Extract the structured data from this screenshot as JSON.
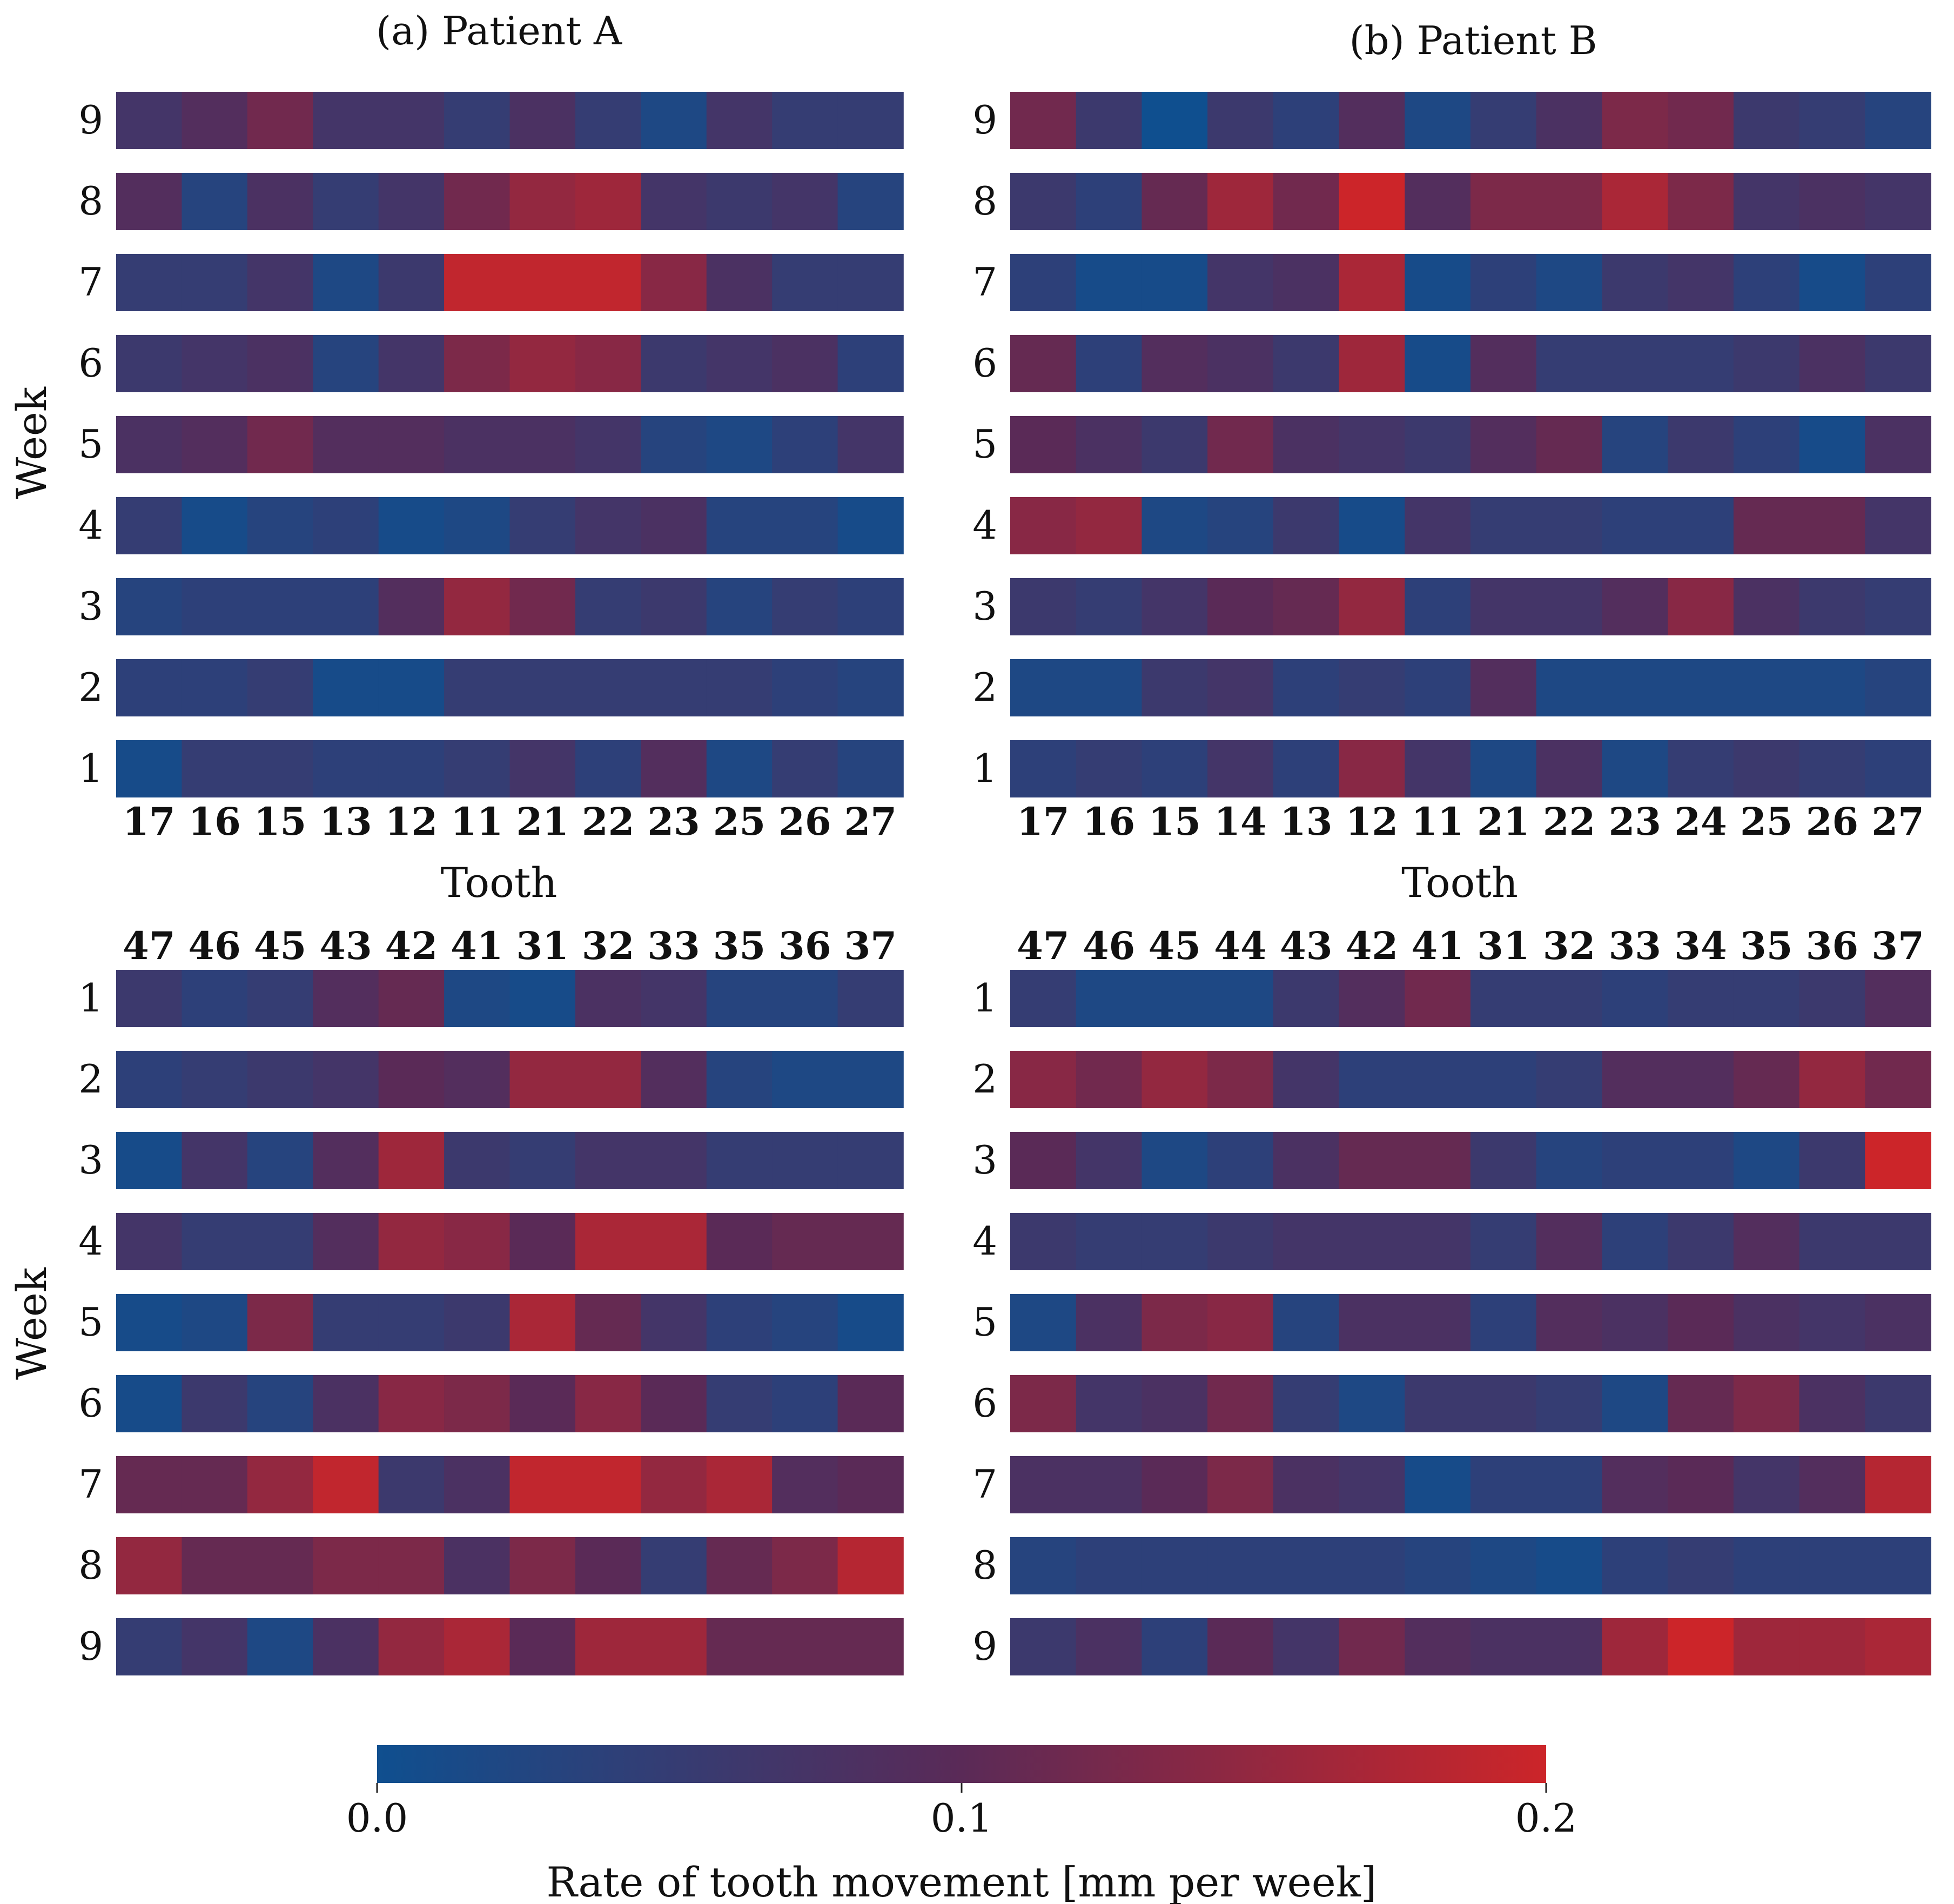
{
  "colorbar": {
    "label": "Rate of tooth movement [mm per week]",
    "min": 0.0,
    "max": 0.2,
    "ticks": [
      "0.0",
      "0.1",
      "0.2"
    ],
    "colors": [
      "#0f4f8f",
      "#5a2a57",
      "#cc2529"
    ]
  },
  "chart_data": [
    {
      "type": "heatmap",
      "title": "(a) Patient A",
      "xlabel": "Tooth",
      "ylabel": "Week",
      "x": [
        "17",
        "16",
        "15",
        "13",
        "12",
        "11",
        "21",
        "22",
        "23",
        "25",
        "26",
        "27"
      ],
      "y": [
        "9",
        "8",
        "7",
        "6",
        "5",
        "4",
        "3",
        "2",
        "1"
      ],
      "values": [
        [
          0.07,
          0.09,
          0.12,
          0.07,
          0.07,
          0.05,
          0.08,
          0.05,
          0.02,
          0.07,
          0.05,
          0.05
        ],
        [
          0.09,
          0.03,
          0.08,
          0.05,
          0.07,
          0.12,
          0.15,
          0.16,
          0.07,
          0.06,
          0.07,
          0.03
        ],
        [
          0.05,
          0.05,
          0.07,
          0.02,
          0.06,
          0.19,
          0.19,
          0.19,
          0.14,
          0.08,
          0.05,
          0.05
        ],
        [
          0.06,
          0.07,
          0.08,
          0.03,
          0.07,
          0.13,
          0.15,
          0.14,
          0.06,
          0.07,
          0.08,
          0.04
        ],
        [
          0.08,
          0.09,
          0.12,
          0.09,
          0.09,
          0.08,
          0.08,
          0.07,
          0.03,
          0.02,
          0.04,
          0.07
        ],
        [
          0.05,
          0.01,
          0.03,
          0.04,
          0.01,
          0.02,
          0.05,
          0.07,
          0.08,
          0.03,
          0.03,
          0.01
        ],
        [
          0.03,
          0.04,
          0.04,
          0.04,
          0.09,
          0.15,
          0.12,
          0.05,
          0.06,
          0.03,
          0.05,
          0.04
        ],
        [
          0.04,
          0.04,
          0.05,
          0.01,
          0.01,
          0.05,
          0.05,
          0.05,
          0.05,
          0.05,
          0.04,
          0.03
        ],
        [
          0.01,
          0.05,
          0.05,
          0.04,
          0.04,
          0.05,
          0.07,
          0.04,
          0.09,
          0.02,
          0.05,
          0.03
        ]
      ]
    },
    {
      "type": "heatmap",
      "title": "(b) Patient B",
      "xlabel": "Tooth",
      "ylabel": "",
      "x": [
        "17",
        "16",
        "15",
        "14",
        "13",
        "12",
        "11",
        "21",
        "22",
        "23",
        "24",
        "25",
        "26",
        "27"
      ],
      "y": [
        "9",
        "8",
        "7",
        "6",
        "5",
        "4",
        "3",
        "2",
        "1"
      ],
      "values": [
        [
          0.12,
          0.06,
          0.0,
          0.06,
          0.04,
          0.09,
          0.02,
          0.05,
          0.08,
          0.13,
          0.12,
          0.06,
          0.05,
          0.03
        ],
        [
          0.06,
          0.04,
          0.11,
          0.16,
          0.12,
          0.2,
          0.09,
          0.13,
          0.13,
          0.17,
          0.13,
          0.07,
          0.08,
          0.07
        ],
        [
          0.04,
          0.01,
          0.01,
          0.07,
          0.08,
          0.17,
          0.01,
          0.04,
          0.02,
          0.06,
          0.07,
          0.04,
          0.01,
          0.04
        ],
        [
          0.11,
          0.04,
          0.09,
          0.08,
          0.06,
          0.16,
          0.01,
          0.09,
          0.05,
          0.05,
          0.05,
          0.06,
          0.08,
          0.06
        ],
        [
          0.1,
          0.08,
          0.06,
          0.12,
          0.08,
          0.07,
          0.06,
          0.09,
          0.11,
          0.03,
          0.06,
          0.04,
          0.01,
          0.08
        ],
        [
          0.14,
          0.15,
          0.02,
          0.03,
          0.06,
          0.01,
          0.07,
          0.05,
          0.05,
          0.04,
          0.04,
          0.11,
          0.11,
          0.07
        ],
        [
          0.06,
          0.05,
          0.07,
          0.1,
          0.11,
          0.15,
          0.04,
          0.07,
          0.07,
          0.09,
          0.14,
          0.08,
          0.06,
          0.05
        ],
        [
          0.02,
          0.02,
          0.06,
          0.07,
          0.04,
          0.05,
          0.04,
          0.09,
          0.02,
          0.02,
          0.02,
          0.02,
          0.02,
          0.03
        ],
        [
          0.04,
          0.05,
          0.04,
          0.07,
          0.04,
          0.14,
          0.07,
          0.02,
          0.08,
          0.02,
          0.05,
          0.06,
          0.05,
          0.04
        ]
      ]
    },
    {
      "type": "heatmap",
      "title": "",
      "xlabel": "",
      "ylabel": "Week",
      "x": [
        "47",
        "46",
        "45",
        "43",
        "42",
        "41",
        "31",
        "32",
        "33",
        "35",
        "36",
        "37"
      ],
      "y": [
        "1",
        "2",
        "3",
        "4",
        "5",
        "6",
        "7",
        "8",
        "9"
      ],
      "values": [
        [
          0.06,
          0.04,
          0.05,
          0.09,
          0.11,
          0.02,
          0.01,
          0.08,
          0.07,
          0.03,
          0.03,
          0.05
        ],
        [
          0.04,
          0.05,
          0.06,
          0.07,
          0.1,
          0.09,
          0.15,
          0.15,
          0.09,
          0.03,
          0.02,
          0.02
        ],
        [
          0.01,
          0.07,
          0.03,
          0.09,
          0.16,
          0.06,
          0.05,
          0.07,
          0.07,
          0.05,
          0.05,
          0.05
        ],
        [
          0.07,
          0.05,
          0.05,
          0.09,
          0.15,
          0.14,
          0.1,
          0.17,
          0.17,
          0.1,
          0.11,
          0.11
        ],
        [
          0.01,
          0.02,
          0.13,
          0.05,
          0.05,
          0.06,
          0.17,
          0.11,
          0.07,
          0.04,
          0.03,
          0.01
        ],
        [
          0.01,
          0.06,
          0.03,
          0.08,
          0.14,
          0.13,
          0.1,
          0.14,
          0.1,
          0.05,
          0.04,
          0.1
        ],
        [
          0.11,
          0.11,
          0.15,
          0.19,
          0.06,
          0.08,
          0.19,
          0.19,
          0.15,
          0.17,
          0.09,
          0.1
        ],
        [
          0.15,
          0.11,
          0.11,
          0.13,
          0.13,
          0.08,
          0.13,
          0.1,
          0.05,
          0.11,
          0.13,
          0.18
        ],
        [
          0.05,
          0.07,
          0.02,
          0.08,
          0.15,
          0.17,
          0.1,
          0.16,
          0.16,
          0.11,
          0.11,
          0.11
        ]
      ]
    },
    {
      "type": "heatmap",
      "title": "",
      "xlabel": "",
      "ylabel": "",
      "x": [
        "47",
        "46",
        "45",
        "44",
        "43",
        "42",
        "41",
        "31",
        "32",
        "33",
        "34",
        "35",
        "36",
        "37"
      ],
      "y": [
        "1",
        "2",
        "3",
        "4",
        "5",
        "6",
        "7",
        "8",
        "9"
      ],
      "values": [
        [
          0.05,
          0.02,
          0.02,
          0.02,
          0.06,
          0.09,
          0.12,
          0.05,
          0.05,
          0.04,
          0.05,
          0.05,
          0.06,
          0.09
        ],
        [
          0.14,
          0.12,
          0.15,
          0.13,
          0.07,
          0.04,
          0.04,
          0.04,
          0.05,
          0.09,
          0.09,
          0.11,
          0.15,
          0.12
        ],
        [
          0.1,
          0.07,
          0.02,
          0.04,
          0.08,
          0.11,
          0.11,
          0.06,
          0.03,
          0.04,
          0.04,
          0.02,
          0.06,
          0.2
        ],
        [
          0.06,
          0.05,
          0.05,
          0.06,
          0.07,
          0.07,
          0.07,
          0.05,
          0.09,
          0.04,
          0.06,
          0.09,
          0.06,
          0.06
        ],
        [
          0.02,
          0.08,
          0.13,
          0.14,
          0.03,
          0.08,
          0.08,
          0.04,
          0.09,
          0.08,
          0.1,
          0.08,
          0.07,
          0.08
        ],
        [
          0.13,
          0.07,
          0.08,
          0.12,
          0.05,
          0.02,
          0.06,
          0.06,
          0.05,
          0.02,
          0.11,
          0.13,
          0.08,
          0.06
        ],
        [
          0.08,
          0.08,
          0.1,
          0.13,
          0.08,
          0.07,
          0.01,
          0.04,
          0.04,
          0.09,
          0.1,
          0.07,
          0.09,
          0.18
        ],
        [
          0.03,
          0.04,
          0.04,
          0.04,
          0.04,
          0.04,
          0.03,
          0.02,
          0.01,
          0.04,
          0.05,
          0.04,
          0.04,
          0.04
        ],
        [
          0.06,
          0.08,
          0.04,
          0.1,
          0.07,
          0.12,
          0.09,
          0.08,
          0.08,
          0.16,
          0.2,
          0.16,
          0.16,
          0.17
        ]
      ]
    }
  ]
}
